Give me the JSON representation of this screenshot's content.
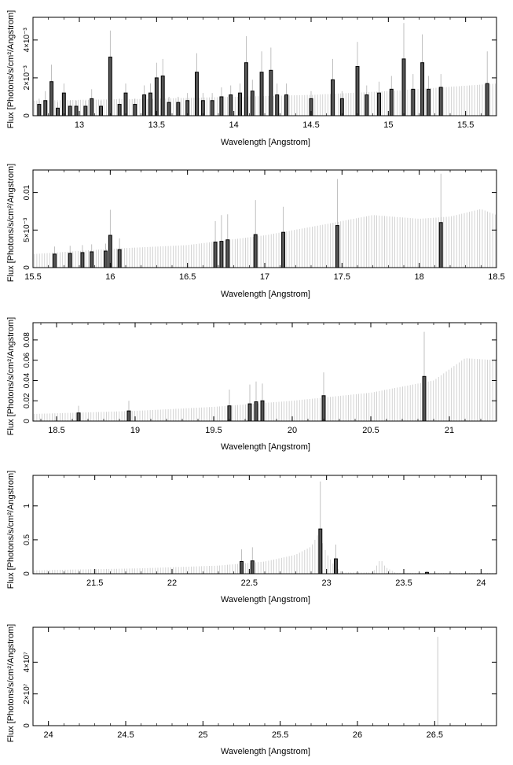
{
  "chart_data": [
    {
      "type": "bar",
      "xlabel": "Wavelength [Angstrom]",
      "ylabel": "Flux [Photons/s/cm²/Angstrom]",
      "xlim": [
        12.7,
        15.7
      ],
      "ylim": [
        0,
        0.0052
      ],
      "xticks": [
        "13",
        "13.5",
        "14",
        "14.5",
        "15",
        "15.5"
      ],
      "yticks": [
        "0",
        "2×10⁻³",
        "4×10⁻³"
      ],
      "ytick_values": [
        0,
        0.002,
        0.004
      ],
      "grid": false,
      "series": [
        {
          "x": [
            12.74,
            12.78,
            12.82,
            12.86,
            12.9,
            12.94,
            12.98,
            13.04,
            13.08,
            13.14,
            13.2,
            13.26,
            13.3,
            13.36,
            13.42,
            13.46,
            13.5,
            13.54,
            13.58,
            13.64,
            13.7,
            13.76,
            13.8,
            13.86,
            13.92,
            13.98,
            14.04,
            14.08,
            14.12,
            14.18,
            14.24,
            14.28,
            14.34,
            14.5,
            14.64,
            14.7,
            14.8,
            14.86,
            14.94,
            15.02,
            15.1,
            15.16,
            15.22,
            15.26,
            15.34,
            15.64
          ],
          "y": [
            0.0006,
            0.0008,
            0.0018,
            0.0004,
            0.0012,
            0.0005,
            0.0005,
            0.0005,
            0.0009,
            0.0005,
            0.0031,
            0.0006,
            0.0012,
            0.0006,
            0.0011,
            0.0012,
            0.002,
            0.0021,
            0.0007,
            0.0007,
            0.0008,
            0.0023,
            0.0008,
            0.0008,
            0.001,
            0.0011,
            0.0012,
            0.0028,
            0.0013,
            0.0023,
            0.0024,
            0.0011,
            0.0011,
            0.0009,
            0.0019,
            0.0009,
            0.0026,
            0.0011,
            0.0012,
            0.0014,
            0.003,
            0.0014,
            0.0028,
            0.0014,
            0.0015,
            0.0017
          ],
          "err": [
            0.0003,
            0.0005,
            0.0009,
            0.0003,
            0.0005,
            0.0003,
            0.0003,
            0.0003,
            0.0005,
            0.0003,
            0.0014,
            0.0003,
            0.0005,
            0.0003,
            0.0005,
            0.0005,
            0.0008,
            0.0009,
            0.0003,
            0.0003,
            0.0004,
            0.001,
            0.0004,
            0.0004,
            0.0005,
            0.0005,
            0.0005,
            0.0014,
            0.0006,
            0.0011,
            0.0012,
            0.0006,
            0.0006,
            0.0004,
            0.0011,
            0.0004,
            0.0013,
            0.0005,
            0.0006,
            0.0007,
            0.0019,
            0.0008,
            0.0015,
            0.0007,
            0.0007,
            0.0017
          ]
        }
      ],
      "model": {
        "x": [
          12.7,
          13.5,
          14.5,
          15.0,
          15.7
        ],
        "y": [
          0.0008,
          0.0009,
          0.0011,
          0.0013,
          0.0017
        ]
      }
    },
    {
      "type": "bar",
      "xlabel": "Wavelength [Angstrom]",
      "ylabel": "Flux [Photons/s/cm²/Angstrom]",
      "xlim": [
        15.5,
        18.5
      ],
      "ylim": [
        0,
        0.013
      ],
      "xticks": [
        "15.5",
        "16",
        "16.5",
        "17",
        "17.5",
        "18",
        "18.5"
      ],
      "yticks": [
        "0",
        "5×10⁻³",
        "0.01"
      ],
      "ytick_values": [
        0,
        0.005,
        0.01
      ],
      "grid": false,
      "series": [
        {
          "x": [
            15.64,
            15.74,
            15.82,
            15.88,
            15.97,
            16.0,
            16.06,
            16.68,
            16.72,
            16.76,
            16.94,
            17.12,
            17.47,
            18.14
          ],
          "y": [
            0.0018,
            0.0019,
            0.002,
            0.0021,
            0.0022,
            0.0043,
            0.0024,
            0.0034,
            0.0035,
            0.0037,
            0.0044,
            0.0047,
            0.0056,
            0.006
          ],
          "err": [
            0.001,
            0.001,
            0.001,
            0.001,
            0.001,
            0.0034,
            0.0015,
            0.0028,
            0.0035,
            0.0034,
            0.0046,
            0.0034,
            0.0062,
            0.0065
          ]
        }
      ],
      "model": {
        "x": [
          15.5,
          16.0,
          16.5,
          17.0,
          17.4,
          17.7,
          18.0,
          18.2,
          18.4,
          18.5
        ],
        "y": [
          0.0018,
          0.0025,
          0.003,
          0.0043,
          0.0058,
          0.007,
          0.0065,
          0.0068,
          0.0078,
          0.007
        ]
      }
    },
    {
      "type": "bar",
      "xlabel": "Wavelength [Angstrom]",
      "ylabel": "Flux [Photons/s/cm²/Angstrom]",
      "xlim": [
        18.35,
        21.3
      ],
      "ylim": [
        0,
        0.097
      ],
      "xticks": [
        "18.5",
        "19",
        "19.5",
        "20",
        "20.5",
        "21"
      ],
      "yticks": [
        "0",
        "0.02",
        "0.04",
        "0.06",
        "0.08"
      ],
      "ytick_values": [
        0,
        0.02,
        0.04,
        0.06,
        0.08
      ],
      "grid": false,
      "series": [
        {
          "x": [
            18.64,
            18.96,
            19.6,
            19.73,
            19.77,
            19.81,
            20.2,
            20.84
          ],
          "y": [
            0.008,
            0.01,
            0.015,
            0.017,
            0.019,
            0.02,
            0.025,
            0.044
          ],
          "err": [
            0.007,
            0.01,
            0.016,
            0.019,
            0.02,
            0.017,
            0.023,
            0.044
          ]
        }
      ],
      "model": {
        "x": [
          18.35,
          19.0,
          19.5,
          20.0,
          20.5,
          20.9,
          21.1,
          21.3
        ],
        "y": [
          0.007,
          0.01,
          0.014,
          0.02,
          0.028,
          0.04,
          0.062,
          0.06
        ]
      }
    },
    {
      "type": "bar",
      "xlabel": "Wavelength [Angstrom]",
      "ylabel": "Flux [Photons/s/cm²/Angstrom]",
      "xlim": [
        21.1,
        24.1
      ],
      "ylim": [
        0,
        1.45
      ],
      "xticks": [
        "21.5",
        "22",
        "22.5",
        "23",
        "23.5",
        "24"
      ],
      "yticks": [
        "0",
        "0.5",
        "1"
      ],
      "ytick_values": [
        0,
        0.5,
        1
      ],
      "grid": false,
      "series": [
        {
          "x": [
            22.45,
            22.52,
            22.96,
            23.06,
            23.65
          ],
          "y": [
            0.18,
            0.19,
            0.66,
            0.22,
            0.02
          ],
          "err": [
            0.18,
            0.2,
            0.7,
            0.21,
            0.02
          ]
        }
      ],
      "model": {
        "x": [
          21.1,
          21.8,
          22.3,
          22.6,
          22.8,
          22.9,
          22.95,
          23.0,
          23.05,
          23.1,
          23.3,
          23.35,
          23.38,
          23.45,
          24.1
        ],
        "y": [
          0.05,
          0.08,
          0.12,
          0.18,
          0.28,
          0.4,
          0.6,
          0.3,
          0.12,
          0.02,
          0.02,
          0.22,
          0.1,
          0.01,
          0.01
        ]
      }
    },
    {
      "type": "bar",
      "xlabel": "Wavelength [Angstrom]",
      "ylabel": "Flux [Photons/s/cm²/Angstrom]",
      "xlim": [
        23.9,
        26.9
      ],
      "ylim": [
        0,
        62000000.0
      ],
      "xticks": [
        "24",
        "24.5",
        "25",
        "25.5",
        "26",
        "26.5"
      ],
      "yticks": [
        "0",
        "2×10⁷",
        "4×10⁷"
      ],
      "ytick_values": [
        0,
        20000000,
        40000000
      ],
      "grid": false,
      "series": [],
      "spike": {
        "x": 26.52,
        "y": 56000000.0
      }
    }
  ]
}
